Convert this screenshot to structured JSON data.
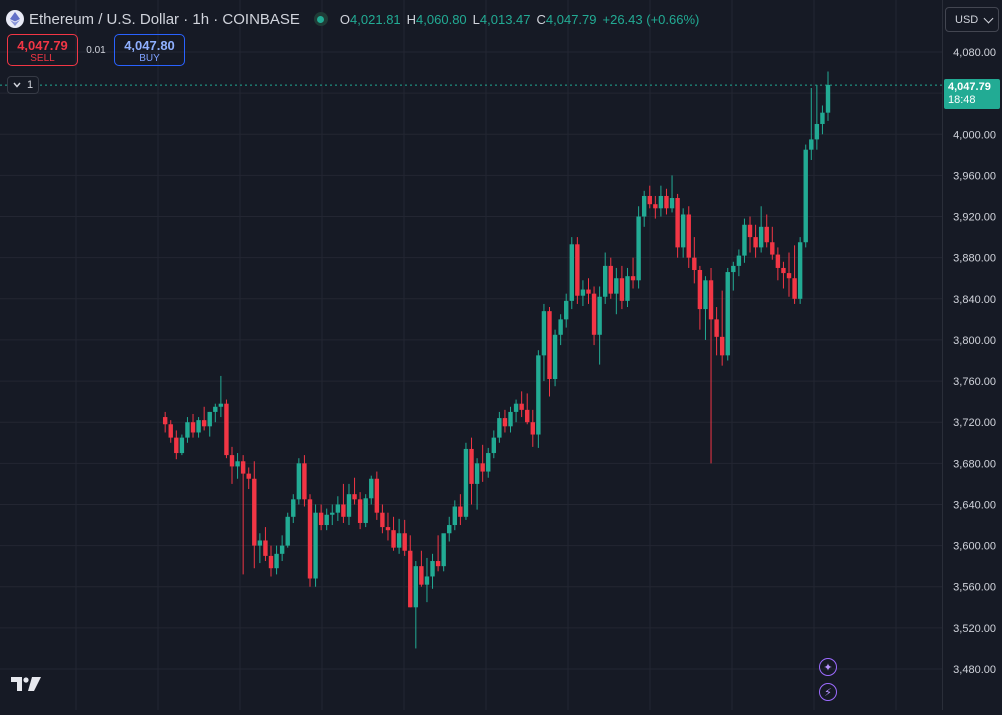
{
  "header": {
    "symbol_title": "Ethereum / U.S. Dollar · 1h · COINBASE",
    "ohlc": {
      "o_label": "O",
      "o": "4,021.81",
      "h_label": "H",
      "h": "4,060.80",
      "l_label": "L",
      "l": "4,013.47",
      "c_label": "C",
      "c": "4,047.79",
      "change": "+26.43 (+0.66%)"
    }
  },
  "trade": {
    "sell_price": "4,047.79",
    "sell_label": "SELL",
    "spread": "0.01",
    "buy_price": "4,047.80",
    "buy_label": "BUY"
  },
  "collapse_count": "1",
  "currency": "USD",
  "last_price_tag": {
    "price": "4,047.79",
    "countdown": "18:48"
  },
  "colors": {
    "up": "#22ab94",
    "down": "#f23645",
    "background": "#161a25",
    "grid": "#232632"
  },
  "icons": {
    "logo": "tradingview-logo",
    "assistant": "sparkle-icon",
    "alerts": "lightning-icon",
    "symbol": "ethereum-logo"
  },
  "chart_data": {
    "type": "candlestick",
    "title": "Ethereum / U.S. Dollar · 1h · COINBASE",
    "yticks": [
      "4,080.00",
      "4,040.00",
      "4,000.00",
      "3,960.00",
      "3,920.00",
      "3,880.00",
      "3,840.00",
      "3,800.00",
      "3,760.00",
      "3,720.00",
      "3,680.00",
      "3,640.00",
      "3,600.00",
      "3,560.00",
      "3,520.00",
      "3,480.00"
    ],
    "ylim": [
      3460,
      4100
    ],
    "last_price": 4047.79,
    "candles": [
      [
        3725,
        3730,
        3710,
        3718
      ],
      [
        3718,
        3722,
        3700,
        3705
      ],
      [
        3705,
        3712,
        3684,
        3690
      ],
      [
        3690,
        3708,
        3688,
        3705
      ],
      [
        3705,
        3725,
        3700,
        3720
      ],
      [
        3720,
        3728,
        3705,
        3710
      ],
      [
        3710,
        3725,
        3705,
        3722
      ],
      [
        3722,
        3735,
        3712,
        3716
      ],
      [
        3716,
        3730,
        3706,
        3730
      ],
      [
        3730,
        3738,
        3720,
        3735
      ],
      [
        3735,
        3765,
        3725,
        3738
      ],
      [
        3738,
        3742,
        3685,
        3688
      ],
      [
        3688,
        3696,
        3660,
        3677
      ],
      [
        3677,
        3690,
        3665,
        3682
      ],
      [
        3682,
        3688,
        3572,
        3670
      ],
      [
        3670,
        3676,
        3655,
        3665
      ],
      [
        3665,
        3682,
        3578,
        3600
      ],
      [
        3600,
        3612,
        3583,
        3605
      ],
      [
        3605,
        3618,
        3585,
        3590
      ],
      [
        3590,
        3600,
        3570,
        3578
      ],
      [
        3578,
        3600,
        3572,
        3592
      ],
      [
        3592,
        3610,
        3585,
        3600
      ],
      [
        3600,
        3632,
        3598,
        3628
      ],
      [
        3628,
        3650,
        3622,
        3645
      ],
      [
        3645,
        3685,
        3640,
        3680
      ],
      [
        3680,
        3688,
        3638,
        3645
      ],
      [
        3645,
        3650,
        3560,
        3568
      ],
      [
        3568,
        3640,
        3560,
        3632
      ],
      [
        3632,
        3640,
        3615,
        3620
      ],
      [
        3620,
        3636,
        3615,
        3630
      ],
      [
        3630,
        3640,
        3620,
        3632
      ],
      [
        3632,
        3648,
        3624,
        3640
      ],
      [
        3640,
        3660,
        3622,
        3628
      ],
      [
        3628,
        3660,
        3620,
        3650
      ],
      [
        3650,
        3666,
        3640,
        3645
      ],
      [
        3645,
        3652,
        3616,
        3622
      ],
      [
        3622,
        3650,
        3618,
        3646
      ],
      [
        3646,
        3668,
        3640,
        3665
      ],
      [
        3665,
        3672,
        3625,
        3632
      ],
      [
        3632,
        3640,
        3612,
        3618
      ],
      [
        3618,
        3632,
        3605,
        3615
      ],
      [
        3615,
        3628,
        3595,
        3598
      ],
      [
        3598,
        3626,
        3592,
        3612
      ],
      [
        3612,
        3625,
        3590,
        3595
      ],
      [
        3595,
        3610,
        3540,
        3540
      ],
      [
        3540,
        3585,
        3500,
        3580
      ],
      [
        3580,
        3595,
        3560,
        3562
      ],
      [
        3562,
        3588,
        3545,
        3570
      ],
      [
        3570,
        3592,
        3558,
        3585
      ],
      [
        3585,
        3610,
        3575,
        3580
      ],
      [
        3580,
        3610,
        3575,
        3612
      ],
      [
        3612,
        3628,
        3604,
        3620
      ],
      [
        3620,
        3644,
        3615,
        3638
      ],
      [
        3638,
        3650,
        3620,
        3628
      ],
      [
        3628,
        3700,
        3625,
        3694
      ],
      [
        3694,
        3705,
        3640,
        3660
      ],
      [
        3660,
        3685,
        3635,
        3680
      ],
      [
        3680,
        3698,
        3662,
        3672
      ],
      [
        3672,
        3695,
        3666,
        3690
      ],
      [
        3690,
        3712,
        3685,
        3705
      ],
      [
        3705,
        3730,
        3700,
        3724
      ],
      [
        3724,
        3732,
        3710,
        3716
      ],
      [
        3716,
        3735,
        3710,
        3730
      ],
      [
        3730,
        3742,
        3720,
        3738
      ],
      [
        3738,
        3750,
        3725,
        3732
      ],
      [
        3732,
        3748,
        3718,
        3720
      ],
      [
        3720,
        3732,
        3696,
        3708
      ],
      [
        3708,
        3790,
        3695,
        3785
      ],
      [
        3785,
        3835,
        3760,
        3828
      ],
      [
        3828,
        3832,
        3745,
        3762
      ],
      [
        3762,
        3810,
        3755,
        3805
      ],
      [
        3805,
        3825,
        3795,
        3820
      ],
      [
        3820,
        3845,
        3812,
        3838
      ],
      [
        3838,
        3900,
        3830,
        3893
      ],
      [
        3893,
        3900,
        3835,
        3843
      ],
      [
        3843,
        3858,
        3833,
        3849
      ],
      [
        3849,
        3860,
        3835,
        3845
      ],
      [
        3845,
        3852,
        3795,
        3805
      ],
      [
        3805,
        3852,
        3776,
        3842
      ],
      [
        3842,
        3885,
        3835,
        3872
      ],
      [
        3872,
        3880,
        3840,
        3845
      ],
      [
        3845,
        3870,
        3825,
        3860
      ],
      [
        3860,
        3872,
        3830,
        3838
      ],
      [
        3838,
        3870,
        3832,
        3862
      ],
      [
        3862,
        3880,
        3850,
        3858
      ],
      [
        3858,
        3930,
        3850,
        3920
      ],
      [
        3920,
        3945,
        3910,
        3940
      ],
      [
        3940,
        3950,
        3928,
        3932
      ],
      [
        3932,
        3940,
        3918,
        3928
      ],
      [
        3928,
        3950,
        3920,
        3940
      ],
      [
        3940,
        3947,
        3922,
        3928
      ],
      [
        3928,
        3960,
        3924,
        3938
      ],
      [
        3938,
        3942,
        3880,
        3890
      ],
      [
        3890,
        3928,
        3880,
        3922
      ],
      [
        3922,
        3930,
        3870,
        3880
      ],
      [
        3880,
        3900,
        3855,
        3868
      ],
      [
        3868,
        3872,
        3810,
        3830
      ],
      [
        3830,
        3862,
        3800,
        3858
      ],
      [
        3858,
        3870,
        3680,
        3820
      ],
      [
        3820,
        3832,
        3785,
        3803
      ],
      [
        3803,
        3848,
        3775,
        3785
      ],
      [
        3785,
        3870,
        3780,
        3866
      ],
      [
        3866,
        3876,
        3848,
        3872
      ],
      [
        3872,
        3888,
        3862,
        3882
      ],
      [
        3882,
        3918,
        3875,
        3912
      ],
      [
        3912,
        3920,
        3885,
        3900
      ],
      [
        3900,
        3912,
        3880,
        3890
      ],
      [
        3890,
        3930,
        3885,
        3910
      ],
      [
        3910,
        3922,
        3890,
        3895
      ],
      [
        3895,
        3910,
        3878,
        3883
      ],
      [
        3883,
        3890,
        3858,
        3870
      ],
      [
        3870,
        3876,
        3850,
        3865
      ],
      [
        3865,
        3885,
        3842,
        3860
      ],
      [
        3860,
        3892,
        3835,
        3840
      ],
      [
        3840,
        3900,
        3835,
        3895
      ],
      [
        3895,
        3990,
        3890,
        3985
      ],
      [
        3985,
        4045,
        3975,
        3995
      ],
      [
        3995,
        4048,
        3985,
        4010
      ],
      [
        4010,
        4028,
        4000,
        4021
      ],
      [
        4021,
        4061,
        4013,
        4048
      ]
    ]
  }
}
